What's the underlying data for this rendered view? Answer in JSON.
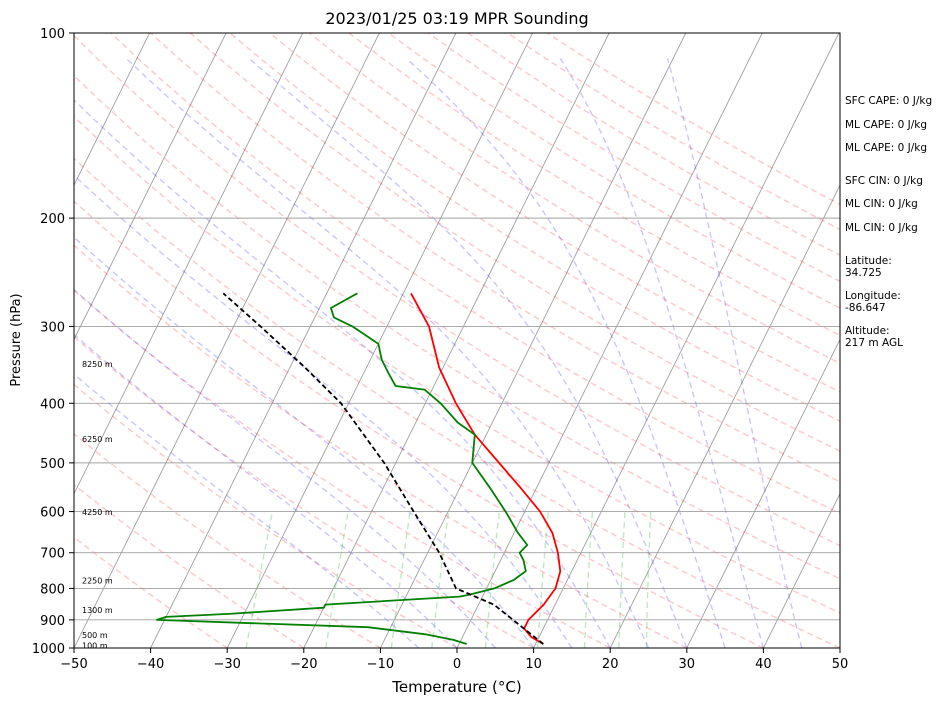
{
  "chart_data": {
    "type": "line",
    "title": "2023/01/25 03:19 MPR Sounding",
    "xlabel": "Temperature (°C)",
    "ylabel": "Pressure (hPa)",
    "xlim": [
      -50,
      50
    ],
    "ylim": [
      1000,
      100
    ],
    "y_scale": "log",
    "x_ticks": [
      "−50",
      "−40",
      "−30",
      "−20",
      "−10",
      "0",
      "10",
      "20",
      "30",
      "40",
      "50"
    ],
    "y_ticks": [
      "100",
      "200",
      "300",
      "400",
      "500",
      "600",
      "700",
      "800",
      "900",
      "1000"
    ],
    "grid": true,
    "skew": true,
    "height_labels": [
      {
        "text": "100 m",
        "p": 990
      },
      {
        "text": "500 m",
        "p": 952
      },
      {
        "text": "1300 m",
        "p": 868
      },
      {
        "text": "2250 m",
        "p": 777
      },
      {
        "text": "4250 m",
        "p": 601
      },
      {
        "text": "6250 m",
        "p": 457
      },
      {
        "text": "8250 m",
        "p": 345
      }
    ],
    "series": [
      {
        "name": "Temperature",
        "color": "#ff0000",
        "style": "solid",
        "points": [
          [
            11,
            985
          ],
          [
            9,
            960
          ],
          [
            7.5,
            930
          ],
          [
            7.5,
            900
          ],
          [
            8.5,
            850
          ],
          [
            9,
            800
          ],
          [
            8.5,
            750
          ],
          [
            7,
            700
          ],
          [
            5,
            650
          ],
          [
            2,
            600
          ],
          [
            -2,
            550
          ],
          [
            -6.5,
            500
          ],
          [
            -11.5,
            450
          ],
          [
            -16,
            400
          ],
          [
            -20.5,
            350
          ],
          [
            -24.5,
            300
          ],
          [
            -29,
            265
          ]
        ]
      },
      {
        "name": "Dewpoint",
        "color": "#008000",
        "style": "solid",
        "points": [
          [
            1,
            985
          ],
          [
            -1,
            970
          ],
          [
            -5,
            950
          ],
          [
            -13,
            925
          ],
          [
            -41,
            900
          ],
          [
            -40,
            890
          ],
          [
            -32,
            880
          ],
          [
            -20,
            860
          ],
          [
            -20,
            850
          ],
          [
            -3,
            825
          ],
          [
            -2,
            820
          ],
          [
            1,
            800
          ],
          [
            3,
            775
          ],
          [
            4,
            750
          ],
          [
            3,
            720
          ],
          [
            2,
            700
          ],
          [
            2.5,
            680
          ],
          [
            0.5,
            650
          ],
          [
            -2.5,
            600
          ],
          [
            -6,
            550
          ],
          [
            -10,
            500
          ],
          [
            -11.5,
            450
          ],
          [
            -14.5,
            430
          ],
          [
            -18,
            400
          ],
          [
            -21,
            380
          ],
          [
            -25,
            375
          ],
          [
            -26.5,
            360
          ],
          [
            -28.5,
            340
          ],
          [
            -30,
            320
          ],
          [
            -34.5,
            300
          ],
          [
            -37.5,
            290
          ],
          [
            -38.5,
            280
          ],
          [
            -36,
            265
          ]
        ]
      },
      {
        "name": "Parcel",
        "color": "#000000",
        "style": "dashed",
        "points": [
          [
            11,
            985
          ],
          [
            2,
            850
          ],
          [
            -4,
            800
          ],
          [
            -8.5,
            700
          ],
          [
            -14.5,
            600
          ],
          [
            -21.5,
            500
          ],
          [
            -31,
            400
          ],
          [
            -38,
            350
          ],
          [
            -46.5,
            300
          ],
          [
            -53.5,
            265
          ]
        ]
      }
    ],
    "side_info": [
      {
        "key": "sfc_cape",
        "text": "SFC CAPE: 0 J/kg"
      },
      {
        "key": "ml_cape_1",
        "text": "ML CAPE: 0 J/kg"
      },
      {
        "key": "ml_cape_2",
        "text": "ML CAPE: 0 J/kg"
      },
      {
        "key": "sfc_cin",
        "text": "SFC CIN: 0 J/kg"
      },
      {
        "key": "ml_cin_1",
        "text": "ML CIN: 0 J/kg"
      },
      {
        "key": "ml_cin_2",
        "text": "ML CIN: 0 J/kg"
      },
      {
        "key": "latitude",
        "text": "Latitude:\n34.725"
      },
      {
        "key": "longitude",
        "text": "Longitude:\n-86.647"
      },
      {
        "key": "altitude",
        "text": "Altitude:\n217 m AGL"
      }
    ]
  }
}
